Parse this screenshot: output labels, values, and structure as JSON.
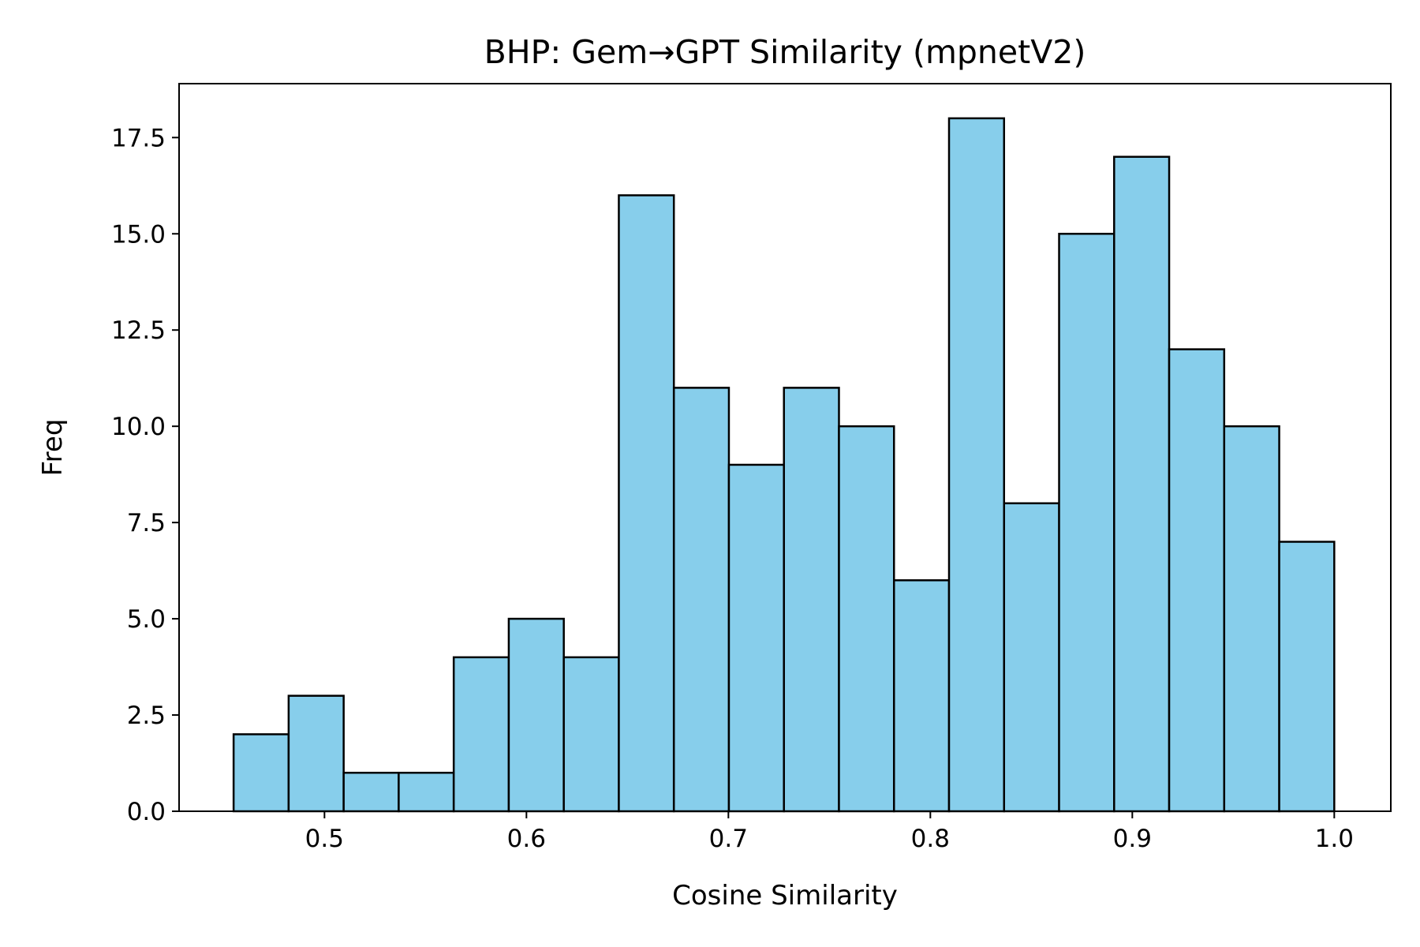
{
  "chart_data": {
    "type": "bar",
    "subtype": "histogram",
    "title": "BHP: Gem→GPT Similarity (mpnetV2)",
    "xlabel": "Cosine Similarity",
    "ylabel": "Freq",
    "xlim": [
      0.428,
      1.028
    ],
    "ylim": [
      0,
      18.9
    ],
    "bin_start": 0.455,
    "bin_end": 1.0,
    "bin_width": 0.02725,
    "values": [
      2,
      3,
      1,
      1,
      4,
      5,
      4,
      16,
      11,
      9,
      11,
      10,
      6,
      18,
      8,
      15,
      17,
      12,
      10,
      7
    ],
    "xticks": [
      0.5,
      0.6,
      0.7,
      0.8,
      0.9,
      1.0
    ],
    "xtick_labels": [
      "0.5",
      "0.6",
      "0.7",
      "0.8",
      "0.9",
      "1.0"
    ],
    "yticks": [
      0,
      2.5,
      5,
      7.5,
      10,
      12.5,
      15,
      17.5
    ],
    "ytick_labels": [
      "0.0",
      "2.5",
      "5.0",
      "7.5",
      "10.0",
      "12.5",
      "15.0",
      "17.5"
    ],
    "grid": false,
    "legend": "none",
    "colors": {
      "bar_fill": "#87CEEB",
      "bar_edge": "#000000",
      "axis": "#000000",
      "background": "#ffffff"
    }
  }
}
